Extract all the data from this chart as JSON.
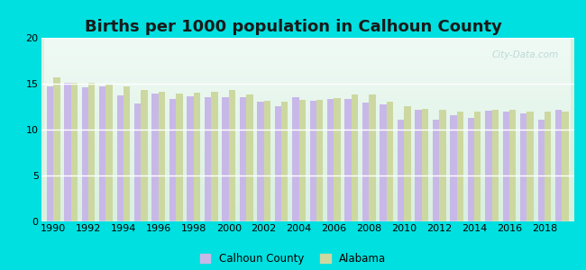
{
  "title": "Births per 1000 population in Calhoun County",
  "years": [
    1990,
    1991,
    1992,
    1993,
    1994,
    1995,
    1996,
    1997,
    1998,
    1999,
    2000,
    2001,
    2002,
    2003,
    2004,
    2005,
    2006,
    2007,
    2008,
    2009,
    2010,
    2011,
    2012,
    2013,
    2014,
    2015,
    2016,
    2017,
    2018,
    2019
  ],
  "calhoun": [
    14.7,
    15.1,
    14.6,
    14.7,
    13.7,
    12.8,
    13.9,
    13.3,
    13.6,
    13.5,
    13.5,
    13.5,
    13.0,
    12.5,
    13.5,
    13.1,
    13.3,
    13.3,
    12.9,
    12.7,
    11.1,
    12.2,
    11.1,
    11.6,
    11.3,
    12.1,
    12.0,
    11.8,
    11.1,
    12.2
  ],
  "alabama": [
    15.7,
    15.1,
    15.1,
    14.9,
    14.7,
    14.3,
    14.1,
    13.9,
    14.0,
    14.1,
    14.3,
    13.8,
    13.1,
    13.0,
    13.2,
    13.2,
    13.4,
    13.8,
    13.8,
    13.0,
    12.5,
    12.3,
    12.2,
    12.0,
    12.0,
    12.2,
    12.2,
    12.0,
    12.0,
    12.0
  ],
  "calhoun_color": "#c8b8e8",
  "alabama_color": "#ccd8a0",
  "bg_top": "#f0faf5",
  "bg_bottom": "#d8f0e0",
  "outer_bg": "#00e0e0",
  "ylim": [
    0,
    20
  ],
  "yticks": [
    0,
    5,
    10,
    15,
    20
  ],
  "xtick_years": [
    1990,
    1992,
    1994,
    1996,
    1998,
    2000,
    2002,
    2004,
    2006,
    2008,
    2010,
    2012,
    2014,
    2016,
    2018
  ],
  "title_fontsize": 13,
  "tick_fontsize": 8,
  "legend_labels": [
    "Calhoun County",
    "Alabama"
  ],
  "watermark": "City-Data.com"
}
